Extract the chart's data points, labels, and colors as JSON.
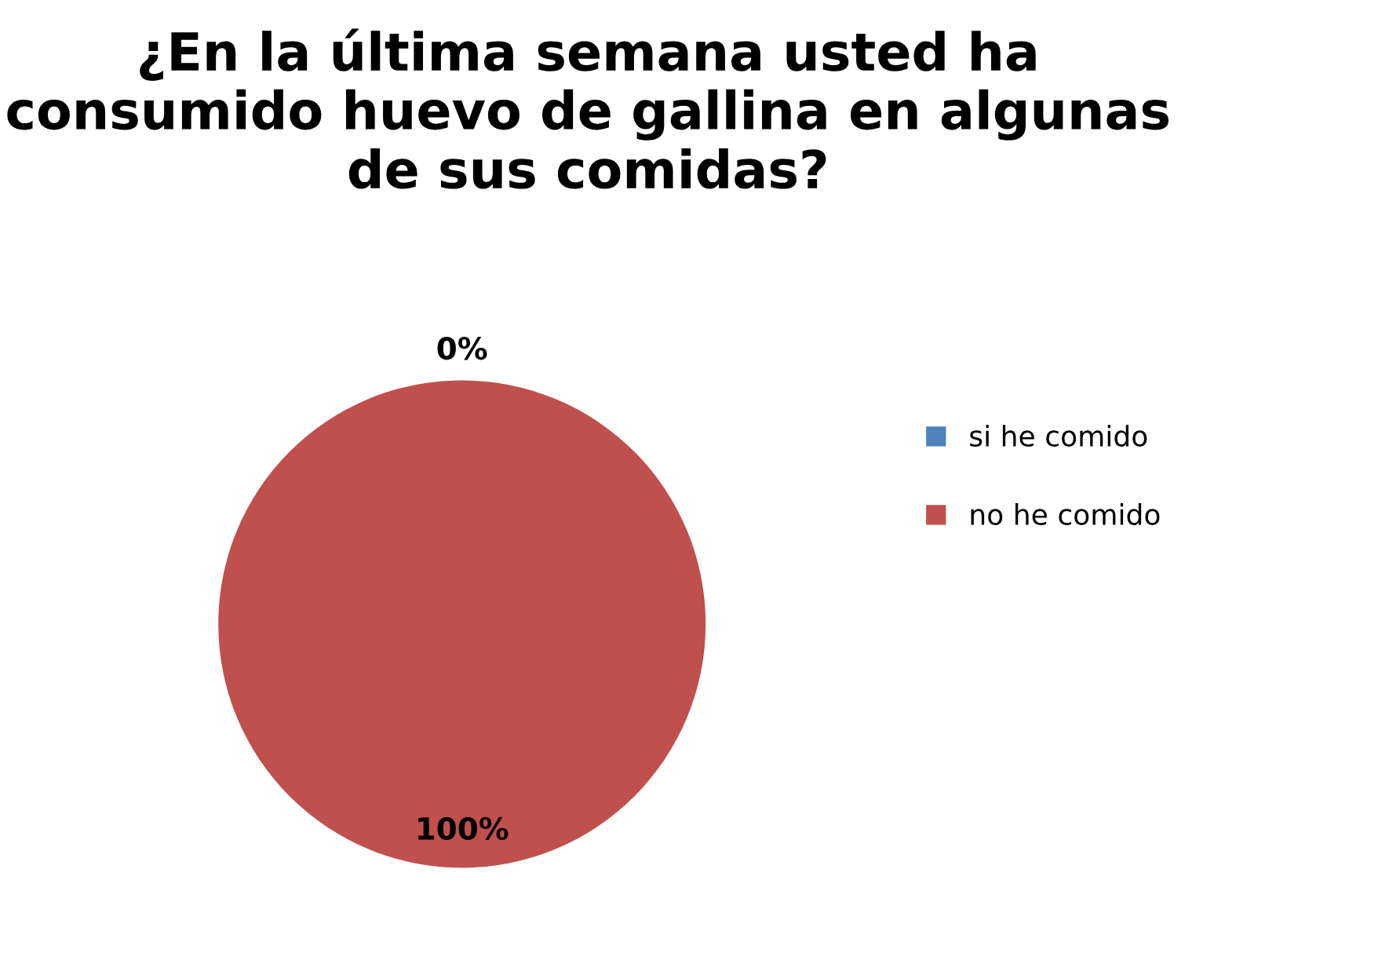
{
  "chart_data": {
    "type": "pie",
    "title": "¿En la última semana usted ha consumido huevo de gallina en algunas de sus comidas?",
    "categories": [
      "si he comido",
      "no he comido"
    ],
    "values": [
      0,
      100
    ],
    "colors": [
      "#4f81bd",
      "#c0504d"
    ],
    "value_labels": [
      "0%",
      "100%"
    ],
    "legend": "right"
  }
}
